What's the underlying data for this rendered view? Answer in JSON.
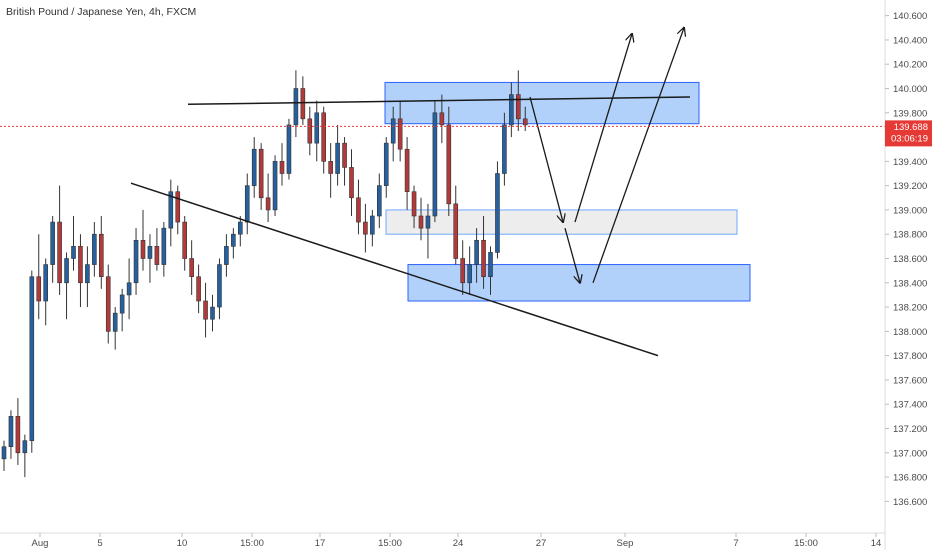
{
  "chart_data": {
    "type": "candlestick",
    "title": "British Pound / Japanese Yen, 4h, FXCM",
    "ylim": [
      136.5,
      140.7
    ],
    "y_ticks": [
      "140.600",
      "140.400",
      "140.200",
      "140.000",
      "139.800",
      "139.600",
      "139.400",
      "139.200",
      "139.000",
      "138.800",
      "138.600",
      "138.400",
      "138.200",
      "138.000",
      "137.800",
      "137.600",
      "137.400",
      "137.200",
      "137.000",
      "136.800",
      "136.600"
    ],
    "x_ticks": [
      "Aug",
      "5",
      "10",
      "15:00",
      "17",
      "15:00",
      "24",
      "27",
      "Sep",
      "7",
      "15:00",
      "14"
    ],
    "last_price": {
      "value": "139.688",
      "countdown": "03:06:19"
    },
    "candles": [
      [
        136.95,
        137.1,
        136.85,
        137.05
      ],
      [
        137.05,
        137.35,
        136.95,
        137.3
      ],
      [
        137.3,
        137.45,
        136.9,
        137.0
      ],
      [
        137.0,
        137.15,
        136.8,
        137.1
      ],
      [
        137.1,
        138.5,
        137.0,
        138.45
      ],
      [
        138.45,
        138.8,
        138.1,
        138.25
      ],
      [
        138.25,
        138.6,
        138.05,
        138.55
      ],
      [
        138.55,
        138.95,
        138.4,
        138.9
      ],
      [
        138.9,
        139.2,
        138.3,
        138.4
      ],
      [
        138.4,
        138.65,
        138.1,
        138.6
      ],
      [
        138.6,
        138.95,
        138.5,
        138.7
      ],
      [
        138.7,
        138.8,
        138.2,
        138.4
      ],
      [
        138.4,
        138.7,
        138.2,
        138.55
      ],
      [
        138.55,
        138.9,
        138.45,
        138.8
      ],
      [
        138.8,
        138.95,
        138.35,
        138.45
      ],
      [
        138.45,
        138.55,
        137.9,
        138.0
      ],
      [
        138.0,
        138.2,
        137.85,
        138.15
      ],
      [
        138.15,
        138.35,
        138.0,
        138.3
      ],
      [
        138.3,
        138.6,
        138.1,
        138.4
      ],
      [
        138.4,
        138.85,
        138.3,
        138.75
      ],
      [
        138.75,
        139.0,
        138.5,
        138.6
      ],
      [
        138.6,
        138.8,
        138.4,
        138.7
      ],
      [
        138.7,
        138.85,
        138.5,
        138.55
      ],
      [
        138.55,
        138.9,
        138.45,
        138.85
      ],
      [
        138.85,
        139.25,
        138.7,
        139.15
      ],
      [
        139.15,
        139.2,
        138.8,
        138.9
      ],
      [
        138.9,
        138.95,
        138.5,
        138.6
      ],
      [
        138.6,
        138.75,
        138.3,
        138.45
      ],
      [
        138.45,
        138.55,
        138.15,
        138.25
      ],
      [
        138.25,
        138.4,
        137.95,
        138.1
      ],
      [
        138.1,
        138.3,
        138.0,
        138.2
      ],
      [
        138.2,
        138.6,
        138.1,
        138.55
      ],
      [
        138.55,
        138.8,
        138.45,
        138.7
      ],
      [
        138.7,
        138.85,
        138.6,
        138.8
      ],
      [
        138.8,
        138.95,
        138.7,
        138.9
      ],
      [
        138.9,
        139.3,
        138.8,
        139.2
      ],
      [
        139.2,
        139.6,
        139.1,
        139.5
      ],
      [
        139.5,
        139.55,
        139.0,
        139.1
      ],
      [
        139.1,
        139.3,
        138.9,
        139.0
      ],
      [
        139.0,
        139.45,
        138.95,
        139.4
      ],
      [
        139.4,
        139.55,
        139.2,
        139.3
      ],
      [
        139.3,
        139.75,
        139.25,
        139.7
      ],
      [
        139.7,
        140.15,
        139.6,
        140.0
      ],
      [
        140.0,
        140.1,
        139.7,
        139.75
      ],
      [
        139.75,
        139.85,
        139.45,
        139.55
      ],
      [
        139.55,
        139.9,
        139.4,
        139.8
      ],
      [
        139.8,
        139.85,
        139.3,
        139.4
      ],
      [
        139.4,
        139.55,
        139.1,
        139.3
      ],
      [
        139.3,
        139.7,
        139.2,
        139.55
      ],
      [
        139.55,
        139.6,
        139.2,
        139.35
      ],
      [
        139.35,
        139.5,
        138.95,
        139.1
      ],
      [
        139.1,
        139.25,
        138.8,
        138.9
      ],
      [
        138.9,
        139.05,
        138.65,
        138.8
      ],
      [
        138.8,
        139.0,
        138.7,
        138.95
      ],
      [
        138.95,
        139.3,
        138.85,
        139.2
      ],
      [
        139.2,
        139.6,
        139.1,
        139.55
      ],
      [
        139.55,
        139.85,
        139.4,
        139.75
      ],
      [
        139.75,
        139.9,
        139.4,
        139.5
      ],
      [
        139.5,
        139.6,
        139.0,
        139.15
      ],
      [
        139.15,
        139.2,
        138.85,
        138.95
      ],
      [
        138.95,
        139.1,
        138.75,
        138.85
      ],
      [
        138.85,
        139.05,
        138.6,
        138.95
      ],
      [
        138.95,
        139.9,
        138.9,
        139.8
      ],
      [
        139.8,
        139.95,
        139.55,
        139.7
      ],
      [
        139.7,
        139.85,
        138.95,
        139.05
      ],
      [
        139.05,
        139.2,
        138.55,
        138.6
      ],
      [
        138.6,
        138.75,
        138.3,
        138.4
      ],
      [
        138.4,
        138.7,
        138.3,
        138.55
      ],
      [
        138.55,
        138.85,
        138.4,
        138.75
      ],
      [
        138.75,
        138.95,
        138.35,
        138.45
      ],
      [
        138.45,
        138.7,
        138.3,
        138.65
      ],
      [
        138.65,
        139.4,
        138.6,
        139.3
      ],
      [
        139.3,
        139.8,
        139.2,
        139.7
      ],
      [
        139.7,
        140.05,
        139.6,
        139.95
      ],
      [
        139.95,
        140.15,
        139.65,
        139.75
      ],
      [
        139.75,
        139.85,
        139.65,
        139.7
      ]
    ],
    "annotations": [
      {
        "kind": "zone",
        "fill": "#a8ccfa",
        "stroke": "#2962ff",
        "x": [
          385,
          699
        ],
        "y": [
          140.05,
          139.71
        ]
      },
      {
        "kind": "zone",
        "fill": "#ebebeb",
        "stroke": "#6fa8ff",
        "x": [
          386,
          737
        ],
        "y": [
          139.0,
          138.8
        ]
      },
      {
        "kind": "zone",
        "fill": "#a8ccfa",
        "stroke": "#2962ff",
        "x": [
          408,
          750
        ],
        "y": [
          138.55,
          138.25
        ]
      },
      {
        "kind": "trendline",
        "color": "#1a1a1a",
        "points": [
          [
            188,
            139.87
          ],
          [
            690,
            139.93
          ]
        ]
      },
      {
        "kind": "trendline",
        "color": "#1a1a1a",
        "points": [
          [
            131,
            139.22
          ],
          [
            658,
            137.8
          ]
        ]
      },
      {
        "kind": "arrow",
        "color": "#1a1a1a",
        "points": [
          [
            530,
            139.93
          ],
          [
            563,
            138.9
          ]
        ]
      },
      {
        "kind": "arrow",
        "color": "#1a1a1a",
        "points": [
          [
            565,
            138.85
          ],
          [
            580,
            138.4
          ]
        ]
      },
      {
        "kind": "arrow",
        "color": "#1a1a1a",
        "points": [
          [
            575,
            138.9
          ],
          [
            632,
            140.45
          ]
        ]
      },
      {
        "kind": "arrow",
        "color": "#1a1a1a",
        "points": [
          [
            593,
            138.4
          ],
          [
            684,
            140.5
          ]
        ]
      }
    ]
  },
  "colors": {
    "up": "#26609f",
    "down": "#b23a3a",
    "axis_text": "#4a4a4a",
    "price_line": "#e53935",
    "badge_bg": "#e53935",
    "grid": "#eeeeee"
  }
}
